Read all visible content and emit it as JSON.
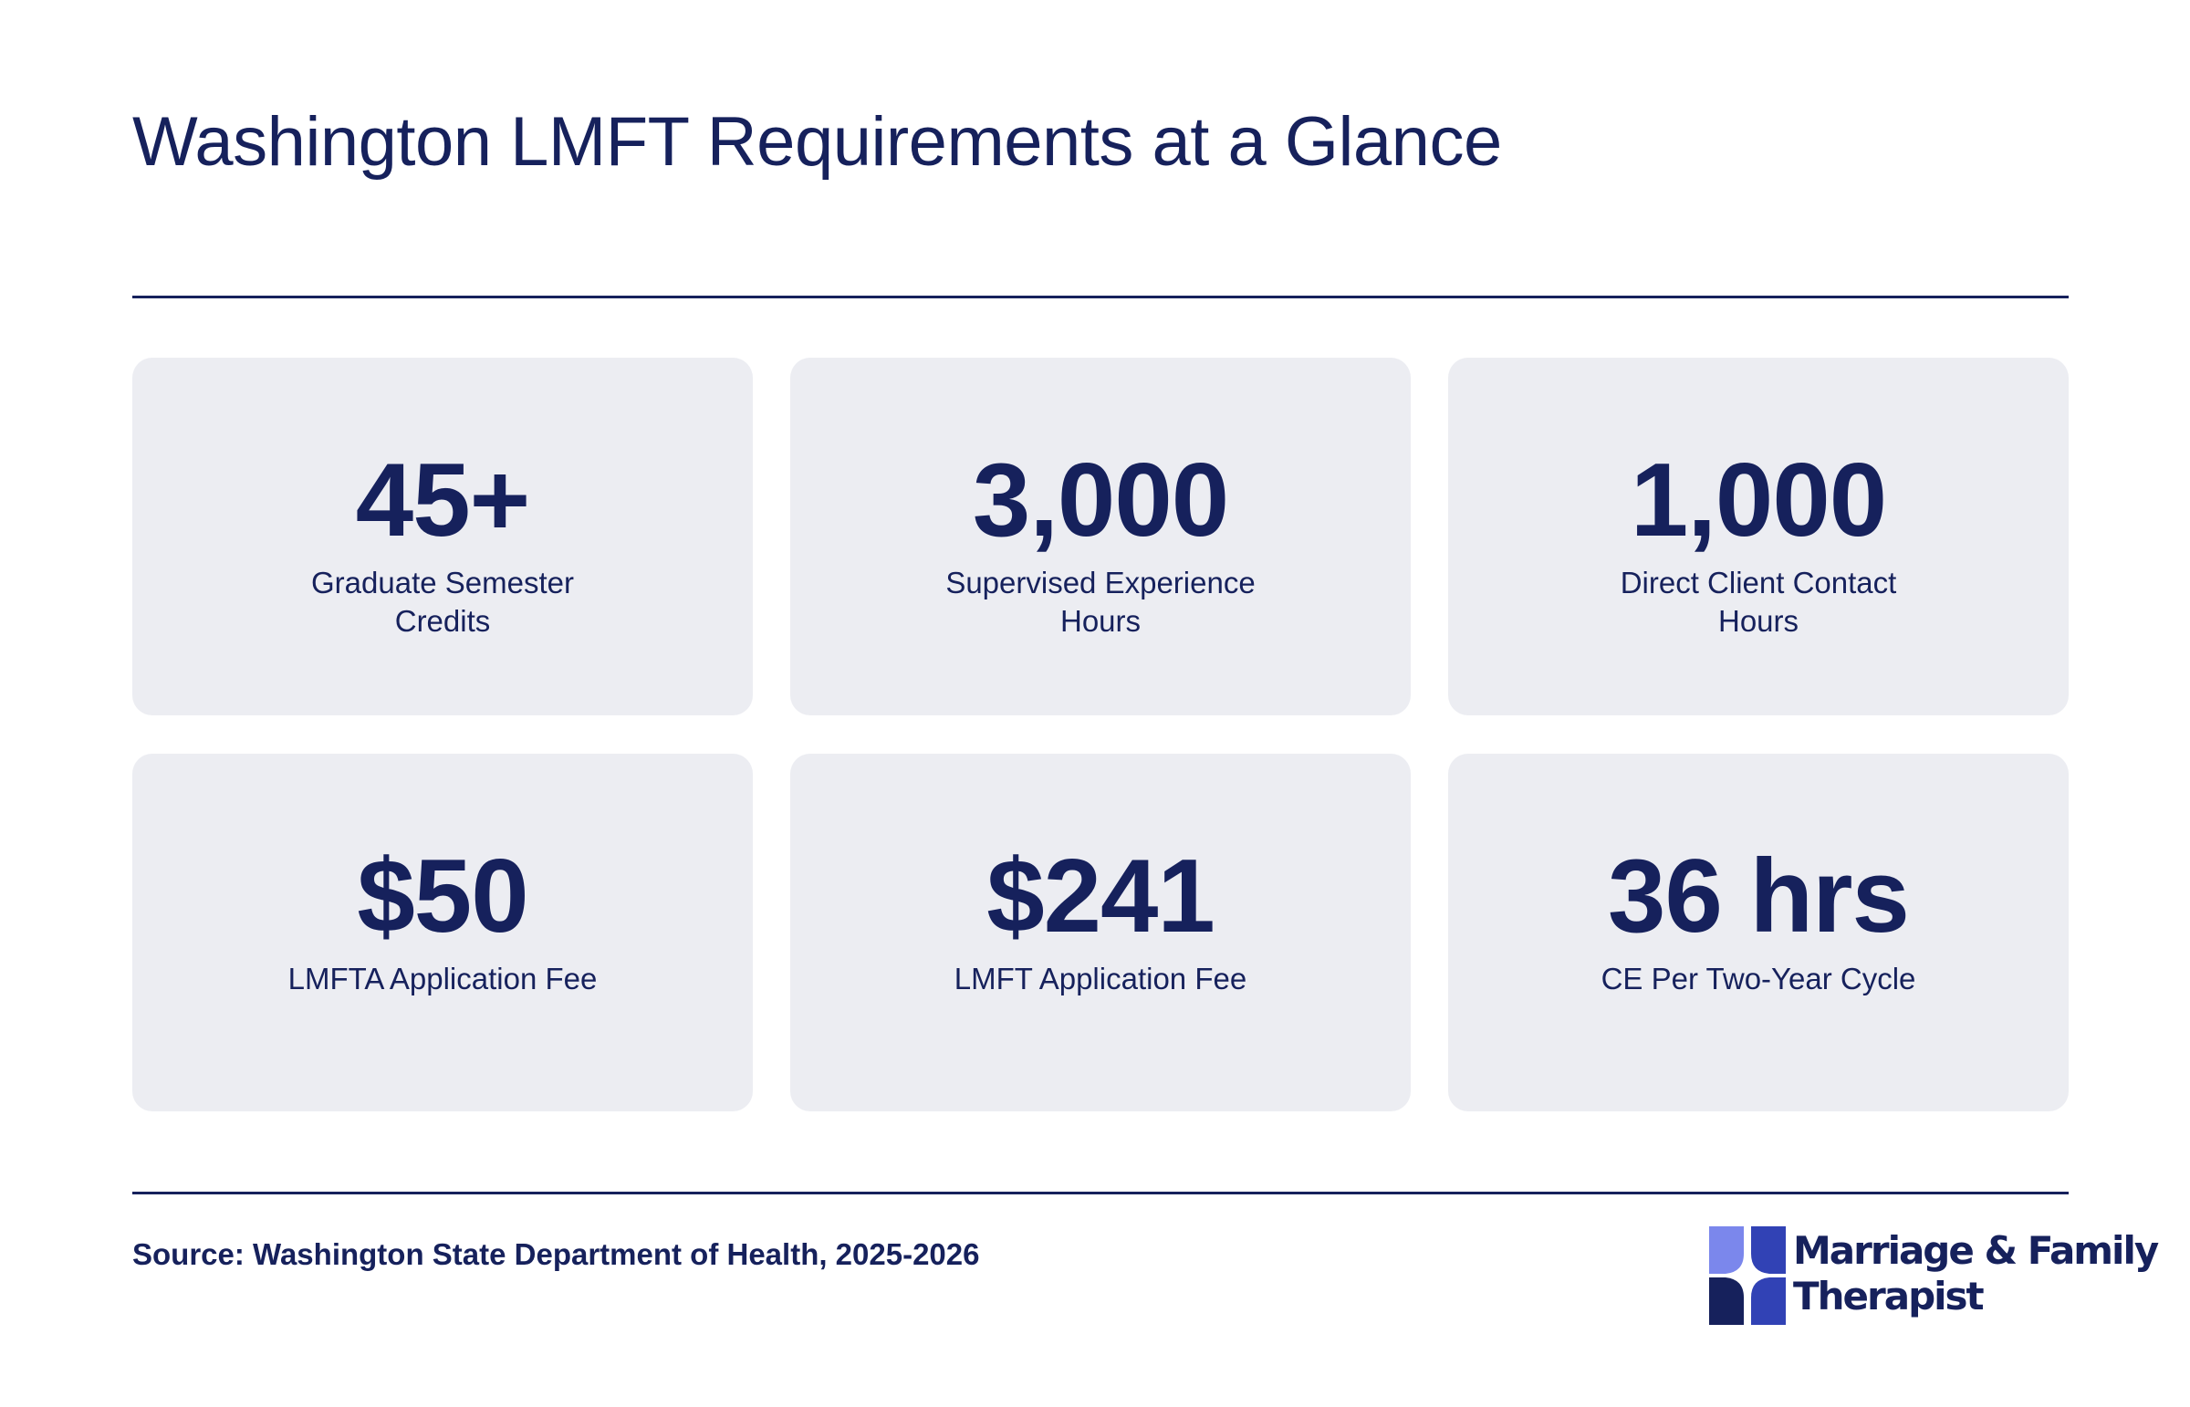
{
  "header": {
    "title": "Washington LMFT Requirements at a Glance"
  },
  "stats": [
    {
      "value": "45+",
      "label": "Graduate Semester Credits"
    },
    {
      "value": "3,000",
      "label": "Supervised Experience Hours"
    },
    {
      "value": "1,000",
      "label": "Direct Client Contact Hours"
    },
    {
      "value": "$50",
      "label": "LMFTA Application Fee"
    },
    {
      "value": "$241",
      "label": "LMFT Application Fee"
    },
    {
      "value": "36 hrs",
      "label": "CE Per Two-Year Cycle"
    }
  ],
  "footer": {
    "source": "Source: Washington State Department of Health, 2025-2026",
    "logo_line1": "Marriage & Family",
    "logo_line2": "Therapist"
  },
  "colors": {
    "navy": "#16215c",
    "card_bg": "#ecedf2",
    "logo_light": "#7b87ec",
    "logo_mid": "#3142b5",
    "logo_dark": "#16215c"
  }
}
